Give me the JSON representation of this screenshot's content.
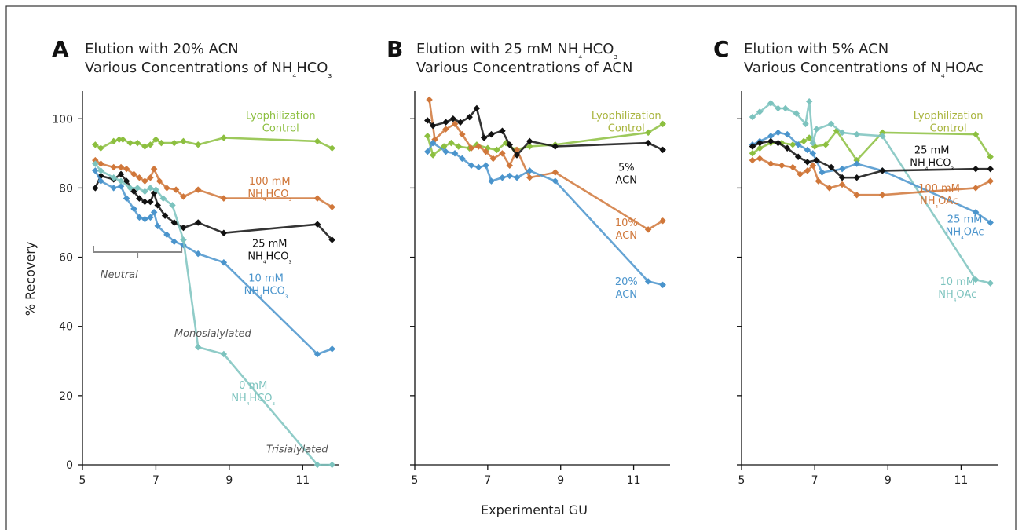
{
  "axis_labels": {
    "x": "Experimental GU",
    "y": "% Recovery"
  },
  "colors": {
    "green": "#8cbf3f",
    "orange": "#d0773a",
    "black": "#111111",
    "blue": "#4a94cc",
    "teal": "#7cc3be",
    "olive": "#a8b43c"
  },
  "chart_data": [
    {
      "type": "line",
      "panel_letter": "A",
      "title": "Elution with 20% ACN",
      "subtitle": "Various Concentrations of NH₄HCO₃",
      "xlabel": "Experimental GU",
      "ylabel": "% Recovery",
      "xlim": [
        5,
        12
      ],
      "ylim": [
        0,
        108
      ],
      "xticks": [
        5,
        7,
        9,
        11
      ],
      "yticks": [
        0,
        20,
        40,
        60,
        80,
        100
      ],
      "series": [
        {
          "color": "green",
          "x": [
            5.35,
            5.5,
            5.85,
            6.0,
            6.1,
            6.3,
            6.5,
            6.7,
            6.85,
            7.0,
            7.15,
            7.5,
            7.75,
            8.15,
            8.85,
            11.4,
            11.8
          ],
          "y": [
            92.5,
            91.5,
            93.5,
            94,
            94,
            93,
            93,
            92,
            92.5,
            94,
            93,
            93,
            93.5,
            92.5,
            94.5,
            93.5,
            91.5
          ]
        },
        {
          "color": "orange",
          "x": [
            5.35,
            5.5,
            5.85,
            6.05,
            6.2,
            6.4,
            6.55,
            6.7,
            6.85,
            6.95,
            7.1,
            7.3,
            7.55,
            7.75,
            8.15,
            8.85,
            11.4,
            11.8
          ],
          "y": [
            88,
            87,
            86,
            86,
            85.5,
            84,
            83,
            82,
            83,
            85.5,
            82,
            80,
            79.5,
            77.5,
            79.5,
            77,
            77,
            74.5
          ]
        },
        {
          "color": "black",
          "x": [
            5.35,
            5.5,
            5.85,
            6.05,
            6.2,
            6.4,
            6.55,
            6.7,
            6.85,
            6.95,
            7.05,
            7.25,
            7.5,
            7.75,
            8.15,
            8.85,
            11.4,
            11.8
          ],
          "y": [
            80,
            83.5,
            82.5,
            84,
            82,
            79,
            77,
            76,
            76,
            78.5,
            75,
            72,
            70,
            68.5,
            70,
            67,
            69.5,
            65
          ]
        },
        {
          "color": "blue",
          "x": [
            5.35,
            5.5,
            5.85,
            6.05,
            6.2,
            6.4,
            6.55,
            6.7,
            6.85,
            6.95,
            7.05,
            7.3,
            7.5,
            7.75,
            8.15,
            8.85,
            11.4,
            11.8
          ],
          "y": [
            85,
            82,
            80,
            80.5,
            77,
            74,
            71.5,
            71,
            71.5,
            73,
            69,
            66.5,
            64.5,
            63.5,
            61,
            58.5,
            32,
            33.5
          ]
        },
        {
          "color": "teal",
          "x": [
            5.35,
            5.5,
            5.85,
            6.05,
            6.3,
            6.5,
            6.7,
            6.85,
            7.0,
            7.2,
            7.45,
            7.75,
            8.15,
            8.85,
            11.4,
            11.8
          ],
          "y": [
            87,
            85,
            83,
            82,
            80,
            80,
            79,
            80,
            79.5,
            77,
            75,
            65,
            34,
            32,
            0,
            0
          ]
        }
      ],
      "labels": [
        {
          "lines": [
            "Lyophilization",
            "Control"
          ],
          "color": "green",
          "x": 10.4,
          "y": 100
        },
        {
          "lines": [
            "100 mM",
            "NH₄HCO₃"
          ],
          "color": "orange",
          "x": 10.1,
          "y": 81
        },
        {
          "lines": [
            "25 mM",
            "NH₄HCO₃"
          ],
          "color": "black",
          "x": 10.1,
          "y": 63
        },
        {
          "lines": [
            "10 mM",
            "NH₄HCO₃"
          ],
          "color": "blue",
          "x": 10.0,
          "y": 53
        },
        {
          "lines": [
            "0 mM",
            "NH₄HCO₃"
          ],
          "color": "teal",
          "x": 9.65,
          "y": 22
        }
      ],
      "notes": [
        {
          "text": "Neutral",
          "x": 6.0,
          "y": 54
        },
        {
          "text": "Monosialylated",
          "x": 8.55,
          "y": 37
        },
        {
          "text": "Trisialylated",
          "x": 10.85,
          "y": 3.5
        }
      ],
      "bracket": {
        "x1": 5.3,
        "x2": 7.7,
        "y": 61.5
      }
    },
    {
      "type": "line",
      "panel_letter": "B",
      "title": "Elution with 25 mM NH₄HCO₃",
      "subtitle": "Various Concentrations of ACN",
      "xlabel": "Experimental GU",
      "ylabel": "",
      "xlim": [
        5,
        12
      ],
      "ylim": [
        0,
        108
      ],
      "xticks": [
        5,
        7,
        9,
        11
      ],
      "yticks": [
        0,
        20,
        40,
        60,
        80,
        100
      ],
      "series": [
        {
          "color": "green",
          "x": [
            5.35,
            5.5,
            5.8,
            6.0,
            6.2,
            6.5,
            6.7,
            7.0,
            7.25,
            7.5,
            7.75,
            8.15,
            8.85,
            11.4,
            11.8
          ],
          "y": [
            95,
            89.5,
            92,
            93,
            92,
            91.5,
            92.5,
            91.5,
            91,
            93,
            91,
            92,
            92.5,
            96,
            98.5
          ]
        },
        {
          "color": "orange",
          "x": [
            5.4,
            5.55,
            5.85,
            6.1,
            6.3,
            6.55,
            6.75,
            6.95,
            7.15,
            7.4,
            7.6,
            7.8,
            8.15,
            8.85,
            11.4,
            11.8
          ],
          "y": [
            105.5,
            94,
            97,
            98.5,
            95.5,
            91.5,
            92,
            90.5,
            88.5,
            90,
            86.5,
            91,
            83,
            84.5,
            68,
            70.5
          ]
        },
        {
          "color": "black",
          "x": [
            5.35,
            5.5,
            5.85,
            6.05,
            6.25,
            6.5,
            6.7,
            6.9,
            7.1,
            7.4,
            7.6,
            7.8,
            8.15,
            8.85,
            11.4,
            11.8
          ],
          "y": [
            99.5,
            98,
            99,
            100,
            99,
            100.5,
            103,
            94.5,
            95.5,
            96.5,
            92.5,
            89.5,
            93.5,
            92,
            93,
            91
          ]
        },
        {
          "color": "blue",
          "x": [
            5.35,
            5.5,
            5.85,
            6.1,
            6.3,
            6.55,
            6.75,
            6.95,
            7.1,
            7.4,
            7.6,
            7.8,
            8.15,
            8.85,
            11.4,
            11.8
          ],
          "y": [
            90.5,
            93,
            90.5,
            90,
            88.5,
            86.5,
            86,
            86.5,
            82,
            83,
            83.5,
            83,
            85,
            82,
            53,
            52
          ]
        }
      ],
      "labels": [
        {
          "lines": [
            "Lyophilization",
            "Control"
          ],
          "color": "olive",
          "x": 10.8,
          "y": 100
        },
        {
          "lines": [
            "5%",
            "ACN"
          ],
          "color": "black",
          "x": 10.8,
          "y": 85
        },
        {
          "lines": [
            "10%",
            "ACN"
          ],
          "color": "orange",
          "x": 10.8,
          "y": 69
        },
        {
          "lines": [
            "20%",
            "ACN"
          ],
          "color": "blue",
          "x": 10.8,
          "y": 52
        }
      ],
      "notes": []
    },
    {
      "type": "line",
      "panel_letter": "C",
      "title": "Elution with 5% ACN",
      "subtitle": "Various Concentrations of N₄HOAc",
      "xlabel": "",
      "ylabel": "",
      "xlim": [
        5,
        12
      ],
      "ylim": [
        0,
        108
      ],
      "xticks": [
        5,
        7,
        9,
        11
      ],
      "yticks": [
        0,
        20,
        40,
        60,
        80,
        100
      ],
      "series": [
        {
          "color": "green",
          "x": [
            5.3,
            5.5,
            5.8,
            6.1,
            6.4,
            6.7,
            6.85,
            7.0,
            7.3,
            7.6,
            8.15,
            8.85,
            11.4,
            11.8
          ],
          "y": [
            90,
            91.5,
            93,
            93,
            92.5,
            93.5,
            94.5,
            92,
            92.5,
            96.5,
            88,
            96,
            95.5,
            89
          ]
        },
        {
          "color": "teal",
          "x": [
            5.3,
            5.5,
            5.8,
            6.0,
            6.2,
            6.5,
            6.75,
            6.85,
            6.95,
            7.05,
            7.45,
            7.75,
            8.15,
            8.85,
            11.4,
            11.8
          ],
          "y": [
            100.5,
            102,
            104.5,
            103,
            103,
            101.5,
            98.5,
            105,
            93,
            97,
            98.5,
            96,
            95.5,
            95,
            53.5,
            52.5
          ]
        },
        {
          "color": "orange",
          "x": [
            5.3,
            5.5,
            5.8,
            6.1,
            6.4,
            6.6,
            6.8,
            6.95,
            7.1,
            7.4,
            7.75,
            8.15,
            8.85,
            11.4,
            11.8
          ],
          "y": [
            88,
            88.5,
            87,
            86.5,
            86,
            84,
            85,
            86.5,
            82,
            80,
            81,
            78,
            78,
            80,
            82
          ]
        },
        {
          "color": "blue",
          "x": [
            5.3,
            5.5,
            5.8,
            6.0,
            6.25,
            6.55,
            6.8,
            6.95,
            7.2,
            7.75,
            8.15,
            8.85,
            11.4,
            11.8
          ],
          "y": [
            92.5,
            93.5,
            95,
            96,
            95.5,
            92.5,
            91,
            90,
            84.5,
            85.5,
            87,
            85,
            73,
            70
          ]
        },
        {
          "color": "black",
          "x": [
            5.3,
            5.5,
            5.8,
            6.0,
            6.25,
            6.55,
            6.8,
            7.05,
            7.45,
            7.75,
            8.15,
            8.85,
            11.4,
            11.8
          ],
          "y": [
            92,
            93,
            93.5,
            93,
            91.5,
            89,
            87.5,
            88,
            86,
            83,
            83,
            85,
            85.5,
            85.5
          ]
        }
      ],
      "labels": [
        {
          "lines": [
            "Lyophilization",
            "Control"
          ],
          "color": "olive",
          "x": 10.65,
          "y": 100
        },
        {
          "lines": [
            "25 mM",
            "NH₄HCO₃"
          ],
          "color": "black",
          "x": 10.2,
          "y": 90
        },
        {
          "lines": [
            "100 mM",
            "NH₄OAc"
          ],
          "color": "orange",
          "x": 10.4,
          "y": 79
        },
        {
          "lines": [
            "25 mM",
            "NH₄OAc"
          ],
          "color": "blue",
          "x": 11.1,
          "y": 70
        },
        {
          "lines": [
            "10 mM",
            "NH₄OAc"
          ],
          "color": "teal",
          "x": 10.9,
          "y": 52
        }
      ],
      "notes": []
    }
  ]
}
